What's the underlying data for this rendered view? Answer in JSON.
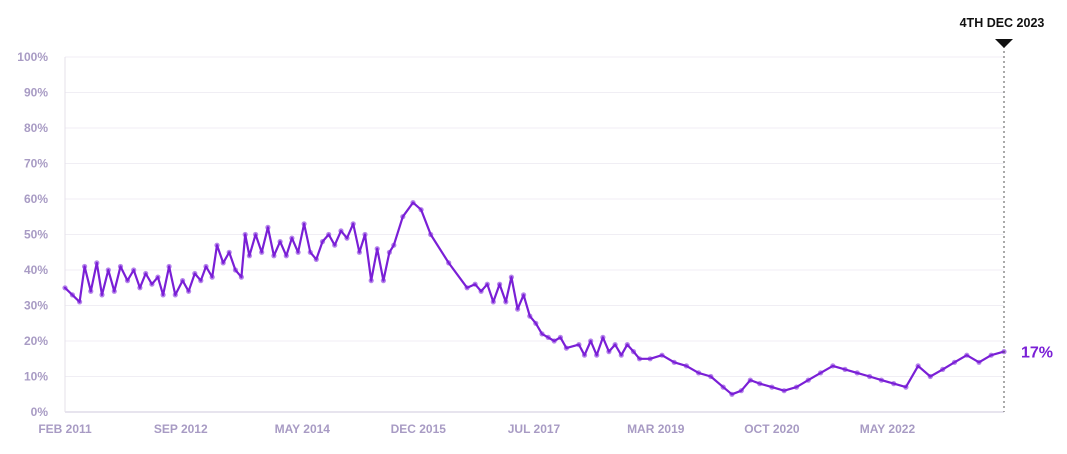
{
  "chart_data": {
    "type": "line",
    "title": "",
    "xlabel": "",
    "ylabel": "",
    "ylim": [
      0,
      100
    ],
    "xlim": [
      "2011-02-01",
      "2023-12-04"
    ],
    "y_ticks": [
      "0%",
      "10%",
      "20%",
      "30%",
      "40%",
      "50%",
      "60%",
      "70%",
      "80%",
      "90%",
      "100%"
    ],
    "x_ticks": [
      {
        "date": "2011-02-01",
        "label": "FEB 2011"
      },
      {
        "date": "2012-09-01",
        "label": "SEP 2012"
      },
      {
        "date": "2014-05-01",
        "label": "MAY 2014"
      },
      {
        "date": "2015-12-01",
        "label": "DEC 2015"
      },
      {
        "date": "2017-07-01",
        "label": "JUL 2017"
      },
      {
        "date": "2019-03-01",
        "label": "MAR 2019"
      },
      {
        "date": "2020-10-01",
        "label": "OCT 2020"
      },
      {
        "date": "2022-05-01",
        "label": "MAY 2022"
      }
    ],
    "grid": true,
    "annotation": {
      "date": "2023-12-04",
      "label": "4TH DEC 2023"
    },
    "end_label": "17%",
    "colors": {
      "line": "#7a1fd6",
      "points": "#a86ee8",
      "grid": "#f0eef4",
      "ticks": "#a89bc4"
    },
    "series": [
      {
        "points": [
          [
            "2011-02-01",
            35
          ],
          [
            "2011-03-10",
            33
          ],
          [
            "2011-04-15",
            31
          ],
          [
            "2011-05-10",
            41
          ],
          [
            "2011-06-10",
            34
          ],
          [
            "2011-07-10",
            42
          ],
          [
            "2011-08-05",
            33
          ],
          [
            "2011-09-05",
            40
          ],
          [
            "2011-10-05",
            34
          ],
          [
            "2011-11-05",
            41
          ],
          [
            "2011-12-10",
            37
          ],
          [
            "2012-01-10",
            40
          ],
          [
            "2012-02-10",
            35
          ],
          [
            "2012-03-10",
            39
          ],
          [
            "2012-04-10",
            36
          ],
          [
            "2012-05-10",
            38
          ],
          [
            "2012-06-05",
            33
          ],
          [
            "2012-07-05",
            41
          ],
          [
            "2012-08-05",
            33
          ],
          [
            "2012-09-10",
            37
          ],
          [
            "2012-10-10",
            34
          ],
          [
            "2012-11-10",
            39
          ],
          [
            "2012-12-10",
            37
          ],
          [
            "2013-01-05",
            41
          ],
          [
            "2013-02-05",
            38
          ],
          [
            "2013-03-01",
            47
          ],
          [
            "2013-04-01",
            42
          ],
          [
            "2013-05-01",
            45
          ],
          [
            "2013-06-01",
            40
          ],
          [
            "2013-07-01",
            38
          ],
          [
            "2013-07-20",
            50
          ],
          [
            "2013-08-10",
            44
          ],
          [
            "2013-09-10",
            50
          ],
          [
            "2013-10-10",
            45
          ],
          [
            "2013-11-10",
            52
          ],
          [
            "2013-12-10",
            44
          ],
          [
            "2014-01-10",
            48
          ],
          [
            "2014-02-10",
            44
          ],
          [
            "2014-03-10",
            49
          ],
          [
            "2014-04-10",
            45
          ],
          [
            "2014-05-10",
            53
          ],
          [
            "2014-06-10",
            45
          ],
          [
            "2014-07-10",
            43
          ],
          [
            "2014-08-10",
            48
          ],
          [
            "2014-09-10",
            50
          ],
          [
            "2014-10-10",
            47
          ],
          [
            "2014-11-10",
            51
          ],
          [
            "2014-12-10",
            49
          ],
          [
            "2015-01-10",
            53
          ],
          [
            "2015-02-10",
            45
          ],
          [
            "2015-03-10",
            50
          ],
          [
            "2015-04-10",
            37
          ],
          [
            "2015-05-10",
            46
          ],
          [
            "2015-06-10",
            37
          ],
          [
            "2015-07-10",
            45
          ],
          [
            "2015-08-01",
            47
          ],
          [
            "2015-09-15",
            55
          ],
          [
            "2015-11-05",
            59
          ],
          [
            "2015-12-15",
            57
          ],
          [
            "2016-02-01",
            50
          ],
          [
            "2016-05-01",
            42
          ],
          [
            "2016-08-01",
            35
          ],
          [
            "2016-09-10",
            36
          ],
          [
            "2016-10-10",
            34
          ],
          [
            "2016-11-10",
            36
          ],
          [
            "2016-12-10",
            31
          ],
          [
            "2017-01-10",
            36
          ],
          [
            "2017-02-10",
            31
          ],
          [
            "2017-03-10",
            38
          ],
          [
            "2017-04-10",
            29
          ],
          [
            "2017-05-10",
            33
          ],
          [
            "2017-06-10",
            27
          ],
          [
            "2017-07-10",
            25
          ],
          [
            "2017-08-10",
            22
          ],
          [
            "2017-09-10",
            21
          ],
          [
            "2017-10-10",
            20
          ],
          [
            "2017-11-10",
            21
          ],
          [
            "2017-12-10",
            18
          ],
          [
            "2018-02-10",
            19
          ],
          [
            "2018-03-10",
            16
          ],
          [
            "2018-04-10",
            20
          ],
          [
            "2018-05-10",
            16
          ],
          [
            "2018-06-10",
            21
          ],
          [
            "2018-07-10",
            17
          ],
          [
            "2018-08-10",
            19
          ],
          [
            "2018-09-10",
            16
          ],
          [
            "2018-10-10",
            19
          ],
          [
            "2018-11-10",
            17
          ],
          [
            "2018-12-10",
            15
          ],
          [
            "2019-02-01",
            15
          ],
          [
            "2019-04-01",
            16
          ],
          [
            "2019-06-01",
            14
          ],
          [
            "2019-08-01",
            13
          ],
          [
            "2019-10-01",
            11
          ],
          [
            "2019-12-01",
            10
          ],
          [
            "2020-02-01",
            7
          ],
          [
            "2020-03-15",
            5
          ],
          [
            "2020-05-01",
            6
          ],
          [
            "2020-06-15",
            9
          ],
          [
            "2020-08-01",
            8
          ],
          [
            "2020-10-01",
            7
          ],
          [
            "2020-12-01",
            6
          ],
          [
            "2021-02-01",
            7
          ],
          [
            "2021-04-01",
            9
          ],
          [
            "2021-06-01",
            11
          ],
          [
            "2021-08-01",
            13
          ],
          [
            "2021-10-01",
            12
          ],
          [
            "2021-12-01",
            11
          ],
          [
            "2022-02-01",
            10
          ],
          [
            "2022-04-01",
            9
          ],
          [
            "2022-06-01",
            8
          ],
          [
            "2022-08-01",
            7
          ],
          [
            "2022-10-01",
            13
          ],
          [
            "2022-12-01",
            10
          ],
          [
            "2023-02-01",
            12
          ],
          [
            "2023-04-01",
            14
          ],
          [
            "2023-06-01",
            16
          ],
          [
            "2023-08-01",
            14
          ],
          [
            "2023-10-01",
            16
          ],
          [
            "2023-12-04",
            17
          ]
        ]
      }
    ]
  }
}
